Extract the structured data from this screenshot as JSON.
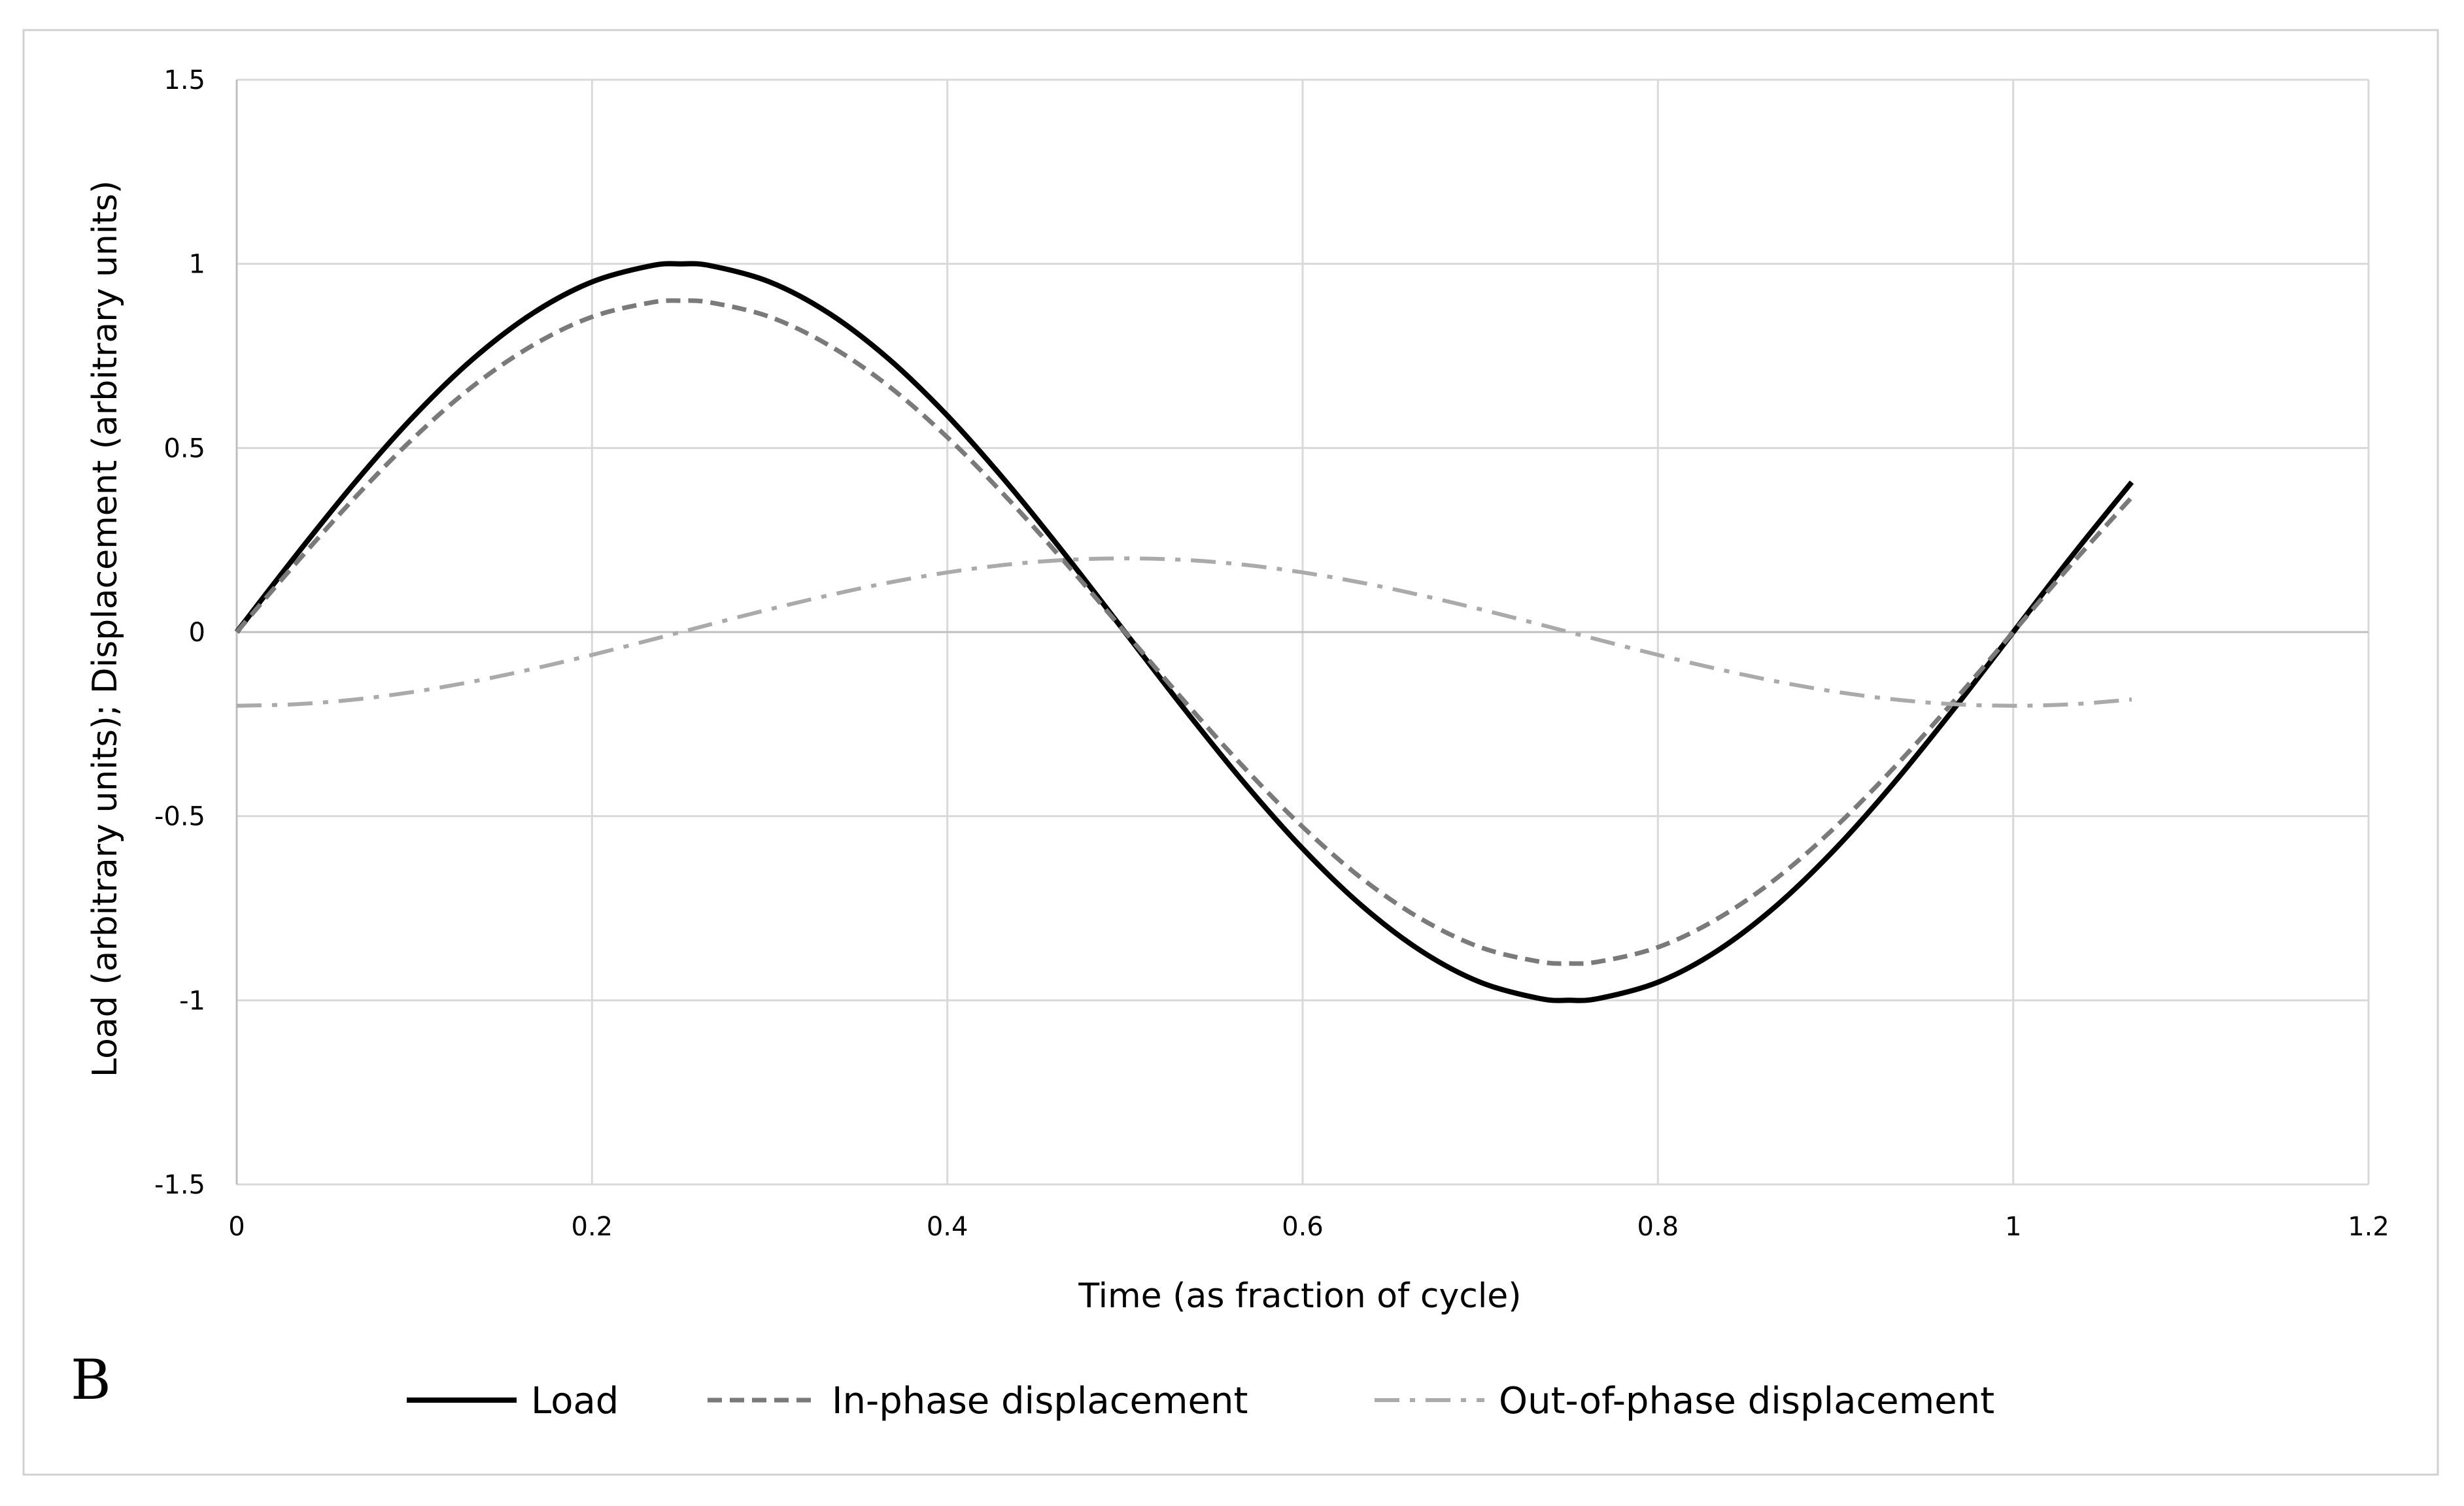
{
  "chart_data": {
    "type": "line",
    "panel_label": "B",
    "xlabel": "Time (as fraction of cycle)",
    "ylabel": "Load (arbitrary units); Displacement (arbitrary units)",
    "xlim": [
      0,
      1.2
    ],
    "ylim": [
      -1.5,
      1.5
    ],
    "xticks": [
      0,
      0.2,
      0.4,
      0.6,
      0.8,
      1,
      1.2
    ],
    "xtick_labels": [
      "0",
      "0.2",
      "0.4",
      "0.6",
      "0.8",
      "1",
      "1.2"
    ],
    "yticks": [
      -1.5,
      -1,
      -0.5,
      0,
      0.5,
      1,
      1.5
    ],
    "ytick_labels": [
      "-1.5",
      "-1",
      "-0.5",
      "0",
      "0.5",
      "1",
      "1.5"
    ],
    "grid": true,
    "legend_position": "bottom",
    "x": [
      0,
      0.0333,
      0.0667,
      0.1,
      0.1333,
      0.1667,
      0.2,
      0.2333,
      0.25,
      0.2667,
      0.3,
      0.3333,
      0.3667,
      0.4,
      0.4333,
      0.4667,
      0.5,
      0.5333,
      0.5667,
      0.6,
      0.6333,
      0.6667,
      0.7,
      0.7333,
      0.75,
      0.7667,
      0.8,
      0.8333,
      0.8667,
      0.9,
      0.9333,
      0.9667,
      1,
      1.0333,
      1.0667
    ],
    "series": [
      {
        "name": "Load",
        "color": "#000000",
        "dash": "solid",
        "values": [
          0,
          0.208,
          0.407,
          0.588,
          0.743,
          0.866,
          0.951,
          0.995,
          1,
          0.995,
          0.951,
          0.866,
          0.743,
          0.588,
          0.407,
          0.208,
          0,
          -0.208,
          -0.407,
          -0.588,
          -0.743,
          -0.866,
          -0.951,
          -0.995,
          -1,
          -0.995,
          -0.951,
          -0.866,
          -0.743,
          -0.588,
          -0.407,
          -0.208,
          0,
          0.208,
          0.407
        ]
      },
      {
        "name": "In-phase displacement",
        "color": "#7a7a7a",
        "dash": "dashed",
        "values": [
          0,
          0.187,
          0.366,
          0.529,
          0.669,
          0.779,
          0.856,
          0.895,
          0.9,
          0.895,
          0.856,
          0.779,
          0.669,
          0.529,
          0.366,
          0.187,
          0,
          -0.187,
          -0.366,
          -0.529,
          -0.669,
          -0.779,
          -0.856,
          -0.895,
          -0.9,
          -0.895,
          -0.856,
          -0.779,
          -0.669,
          -0.529,
          -0.366,
          -0.187,
          0,
          0.187,
          0.366
        ]
      },
      {
        "name": "Out-of-phase displacement",
        "color": "#aaaaaa",
        "dash": "dash-dot",
        "values": [
          -0.2,
          -0.196,
          -0.183,
          -0.162,
          -0.134,
          -0.1,
          -0.062,
          -0.021,
          0,
          0.021,
          0.062,
          0.1,
          0.134,
          0.162,
          0.183,
          0.196,
          0.2,
          0.196,
          0.183,
          0.162,
          0.134,
          0.1,
          0.062,
          0.021,
          0,
          -0.021,
          -0.062,
          -0.1,
          -0.134,
          -0.162,
          -0.183,
          -0.196,
          -0.2,
          -0.196,
          -0.183
        ]
      }
    ]
  }
}
